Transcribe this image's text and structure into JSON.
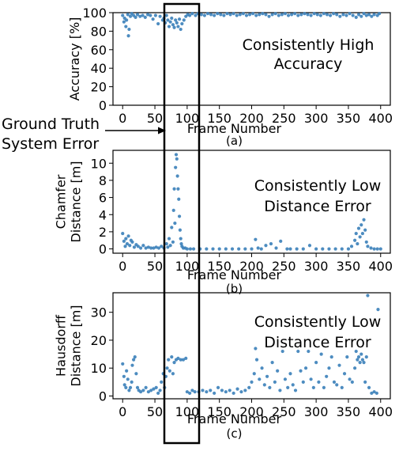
{
  "annotation": {
    "line1": "Ground Truth",
    "line2": "System Error"
  },
  "marker_color": "#3a80b9",
  "chart_data": [
    {
      "type": "scatter",
      "panel_label": "(a)",
      "ylabel_lines": [
        "Accuracy [%]"
      ],
      "xlabel": "Frame Number",
      "xlim": [
        -15,
        415
      ],
      "ylim": [
        0,
        100
      ],
      "xticks": [
        0,
        50,
        100,
        150,
        200,
        250,
        300,
        350,
        400
      ],
      "yticks": [
        0,
        20,
        40,
        60,
        80,
        100
      ],
      "annotation_lines": [
        "Consistently High",
        "Accuracy"
      ],
      "points": [
        [
          0,
          97
        ],
        [
          2,
          90
        ],
        [
          3,
          94
        ],
        [
          5,
          85
        ],
        [
          6,
          92
        ],
        [
          8,
          98
        ],
        [
          9,
          75
        ],
        [
          10,
          82
        ],
        [
          12,
          96
        ],
        [
          14,
          99
        ],
        [
          17,
          97
        ],
        [
          20,
          95
        ],
        [
          23,
          98
        ],
        [
          27,
          96
        ],
        [
          31,
          97
        ],
        [
          35,
          95
        ],
        [
          39,
          98
        ],
        [
          43,
          97
        ],
        [
          47,
          93
        ],
        [
          51,
          97
        ],
        [
          55,
          88
        ],
        [
          58,
          96
        ],
        [
          62,
          92
        ],
        [
          64,
          94
        ],
        [
          66,
          89
        ],
        [
          68,
          97
        ],
        [
          70,
          92
        ],
        [
          72,
          85
        ],
        [
          74,
          90
        ],
        [
          76,
          94
        ],
        [
          78,
          87
        ],
        [
          80,
          84
        ],
        [
          82,
          92
        ],
        [
          84,
          89
        ],
        [
          86,
          85
        ],
        [
          88,
          93
        ],
        [
          90,
          82
        ],
        [
          92,
          88
        ],
        [
          95,
          92
        ],
        [
          98,
          96
        ],
        [
          101,
          98
        ],
        [
          104,
          97
        ],
        [
          108,
          99
        ],
        [
          113,
          97
        ],
        [
          117,
          99
        ],
        [
          122,
          98
        ],
        [
          127,
          97
        ],
        [
          132,
          99
        ],
        [
          137,
          98
        ],
        [
          142,
          97
        ],
        [
          147,
          99
        ],
        [
          152,
          98
        ],
        [
          157,
          97
        ],
        [
          162,
          99
        ],
        [
          167,
          98
        ],
        [
          172,
          99
        ],
        [
          177,
          97
        ],
        [
          182,
          98
        ],
        [
          187,
          99
        ],
        [
          192,
          97
        ],
        [
          197,
          98
        ],
        [
          202,
          99
        ],
        [
          207,
          97
        ],
        [
          212,
          98
        ],
        [
          217,
          99
        ],
        [
          222,
          98
        ],
        [
          227,
          96
        ],
        [
          232,
          98
        ],
        [
          237,
          99
        ],
        [
          242,
          97
        ],
        [
          247,
          98
        ],
        [
          252,
          99
        ],
        [
          257,
          97
        ],
        [
          262,
          98
        ],
        [
          267,
          99
        ],
        [
          272,
          97
        ],
        [
          277,
          98
        ],
        [
          282,
          99
        ],
        [
          287,
          98
        ],
        [
          292,
          97
        ],
        [
          297,
          99
        ],
        [
          302,
          98
        ],
        [
          307,
          97
        ],
        [
          312,
          99
        ],
        [
          317,
          98
        ],
        [
          322,
          97
        ],
        [
          327,
          99
        ],
        [
          332,
          98
        ],
        [
          337,
          96
        ],
        [
          342,
          98
        ],
        [
          347,
          97
        ],
        [
          352,
          99
        ],
        [
          357,
          97
        ],
        [
          362,
          95
        ],
        [
          366,
          98
        ],
        [
          370,
          96
        ],
        [
          374,
          99
        ],
        [
          378,
          97
        ],
        [
          382,
          98
        ],
        [
          386,
          96
        ],
        [
          390,
          98
        ],
        [
          395,
          97
        ],
        [
          398,
          99
        ]
      ]
    },
    {
      "type": "scatter",
      "panel_label": "(b)",
      "ylabel_lines": [
        "Chamfer",
        "Distance [m]"
      ],
      "xlabel": "Frame Number",
      "xlim": [
        -15,
        415
      ],
      "ylim": [
        -0.5,
        11.5
      ],
      "xticks": [
        0,
        50,
        100,
        150,
        200,
        250,
        300,
        350,
        400
      ],
      "yticks": [
        0,
        2,
        4,
        6,
        8,
        10
      ],
      "annotation_lines": [
        "Consistently Low",
        "Distance Error"
      ],
      "points": [
        [
          0,
          1.8
        ],
        [
          2,
          0.9
        ],
        [
          4,
          0.3
        ],
        [
          5,
          1.2
        ],
        [
          7,
          0.6
        ],
        [
          9,
          1.5
        ],
        [
          11,
          0.4
        ],
        [
          13,
          1.0
        ],
        [
          15,
          0.8
        ],
        [
          18,
          0.2
        ],
        [
          21,
          0.5
        ],
        [
          24,
          0.3
        ],
        [
          28,
          0.1
        ],
        [
          32,
          0.4
        ],
        [
          36,
          0.1
        ],
        [
          40,
          0.2
        ],
        [
          44,
          0.1
        ],
        [
          48,
          0.1
        ],
        [
          52,
          0.2
        ],
        [
          56,
          0.1
        ],
        [
          60,
          0.3
        ],
        [
          64,
          0.1
        ],
        [
          68,
          0.6
        ],
        [
          70,
          0.2
        ],
        [
          72,
          1.2
        ],
        [
          74,
          0.4
        ],
        [
          76,
          2.5
        ],
        [
          78,
          0.8
        ],
        [
          79,
          4.5
        ],
        [
          80,
          7.0
        ],
        [
          81,
          3.0
        ],
        [
          82,
          9.5
        ],
        [
          83,
          11.0
        ],
        [
          84,
          10.5
        ],
        [
          85,
          8.5
        ],
        [
          86,
          7.0
        ],
        [
          87,
          5.8
        ],
        [
          88,
          3.8
        ],
        [
          89,
          2.2
        ],
        [
          90,
          1.2
        ],
        [
          91,
          0.6
        ],
        [
          92,
          0.3
        ],
        [
          94,
          0.1
        ],
        [
          97,
          0.1
        ],
        [
          100,
          0.0
        ],
        [
          105,
          0.0
        ],
        [
          110,
          0.0
        ],
        [
          120,
          0.0
        ],
        [
          130,
          0.0
        ],
        [
          140,
          0.0
        ],
        [
          150,
          0.0
        ],
        [
          160,
          0.0
        ],
        [
          170,
          0.0
        ],
        [
          180,
          0.0
        ],
        [
          190,
          0.0
        ],
        [
          200,
          0.0
        ],
        [
          206,
          1.1
        ],
        [
          210,
          0.1
        ],
        [
          215,
          0.0
        ],
        [
          222,
          0.4
        ],
        [
          230,
          0.6
        ],
        [
          238,
          0.1
        ],
        [
          245,
          0.9
        ],
        [
          255,
          0.0
        ],
        [
          260,
          0.0
        ],
        [
          270,
          0.0
        ],
        [
          280,
          0.0
        ],
        [
          290,
          0.4
        ],
        [
          300,
          0.0
        ],
        [
          310,
          0.0
        ],
        [
          320,
          0.0
        ],
        [
          330,
          0.0
        ],
        [
          340,
          0.0
        ],
        [
          350,
          0.0
        ],
        [
          355,
          0.3
        ],
        [
          360,
          1.0
        ],
        [
          362,
          1.8
        ],
        [
          364,
          0.6
        ],
        [
          366,
          2.4
        ],
        [
          368,
          1.4
        ],
        [
          370,
          2.8
        ],
        [
          372,
          1.8
        ],
        [
          374,
          3.4
        ],
        [
          376,
          2.2
        ],
        [
          378,
          0.8
        ],
        [
          380,
          0.3
        ],
        [
          385,
          0.1
        ],
        [
          390,
          0.0
        ],
        [
          395,
          0.0
        ],
        [
          400,
          0.0
        ]
      ]
    },
    {
      "type": "scatter",
      "panel_label": "(c)",
      "ylabel_lines": [
        "Hausdorff",
        "Distance [m]"
      ],
      "xlabel": "Frame Number",
      "xlim": [
        -15,
        415
      ],
      "ylim": [
        -1,
        37
      ],
      "xticks": [
        0,
        50,
        100,
        150,
        200,
        250,
        300,
        350,
        400
      ],
      "yticks": [
        0,
        10,
        20,
        30
      ],
      "annotation_lines": [
        "Consistently Low",
        "Distance Error"
      ],
      "points": [
        [
          0,
          11.5
        ],
        [
          2,
          7
        ],
        [
          3,
          4
        ],
        [
          5,
          3
        ],
        [
          6,
          9
        ],
        [
          8,
          6
        ],
        [
          10,
          2
        ],
        [
          12,
          3
        ],
        [
          14,
          5
        ],
        [
          15,
          11
        ],
        [
          17,
          13
        ],
        [
          19,
          14
        ],
        [
          21,
          8
        ],
        [
          23,
          3
        ],
        [
          25,
          2
        ],
        [
          28,
          1.5
        ],
        [
          32,
          2
        ],
        [
          36,
          3
        ],
        [
          40,
          1.5
        ],
        [
          44,
          2
        ],
        [
          48,
          2.5
        ],
        [
          52,
          3
        ],
        [
          55,
          1
        ],
        [
          58,
          2
        ],
        [
          60,
          5
        ],
        [
          63,
          8
        ],
        [
          65,
          3
        ],
        [
          67,
          7
        ],
        [
          69,
          10
        ],
        [
          71,
          13
        ],
        [
          73,
          9
        ],
        [
          76,
          14
        ],
        [
          78,
          8
        ],
        [
          80,
          12
        ],
        [
          83,
          13
        ],
        [
          86,
          13.5
        ],
        [
          90,
          13
        ],
        [
          94,
          13
        ],
        [
          98,
          13.5
        ],
        [
          100,
          1.5
        ],
        [
          104,
          1
        ],
        [
          108,
          2
        ],
        [
          112,
          1.5
        ],
        [
          118,
          1.5
        ],
        [
          124,
          2
        ],
        [
          130,
          1.5
        ],
        [
          136,
          2
        ],
        [
          142,
          1
        ],
        [
          148,
          3
        ],
        [
          154,
          2
        ],
        [
          160,
          1.5
        ],
        [
          166,
          2
        ],
        [
          172,
          1
        ],
        [
          178,
          2.5
        ],
        [
          184,
          1.5
        ],
        [
          190,
          2
        ],
        [
          196,
          3
        ],
        [
          200,
          5
        ],
        [
          204,
          8
        ],
        [
          206,
          17
        ],
        [
          208,
          13
        ],
        [
          212,
          6
        ],
        [
          216,
          10
        ],
        [
          220,
          4
        ],
        [
          224,
          7
        ],
        [
          228,
          3
        ],
        [
          232,
          12
        ],
        [
          236,
          5
        ],
        [
          240,
          9
        ],
        [
          244,
          2
        ],
        [
          248,
          16
        ],
        [
          252,
          6
        ],
        [
          256,
          3
        ],
        [
          260,
          8
        ],
        [
          264,
          4
        ],
        [
          268,
          2
        ],
        [
          272,
          16
        ],
        [
          276,
          9
        ],
        [
          280,
          5
        ],
        [
          284,
          10
        ],
        [
          288,
          16
        ],
        [
          292,
          6
        ],
        [
          296,
          3
        ],
        [
          300,
          12
        ],
        [
          304,
          5
        ],
        [
          308,
          15
        ],
        [
          312,
          3
        ],
        [
          316,
          7
        ],
        [
          320,
          10
        ],
        [
          324,
          14
        ],
        [
          328,
          5
        ],
        [
          332,
          4
        ],
        [
          336,
          11
        ],
        [
          340,
          3
        ],
        [
          344,
          8
        ],
        [
          348,
          14
        ],
        [
          352,
          6
        ],
        [
          356,
          5
        ],
        [
          360,
          10
        ],
        [
          362,
          16
        ],
        [
          364,
          13
        ],
        [
          366,
          14
        ],
        [
          368,
          12
        ],
        [
          370,
          15
        ],
        [
          372,
          13
        ],
        [
          374,
          12
        ],
        [
          376,
          5
        ],
        [
          378,
          14
        ],
        [
          380,
          36
        ],
        [
          382,
          3
        ],
        [
          386,
          1
        ],
        [
          390,
          1.5
        ],
        [
          394,
          1
        ],
        [
          396,
          31
        ]
      ]
    }
  ]
}
